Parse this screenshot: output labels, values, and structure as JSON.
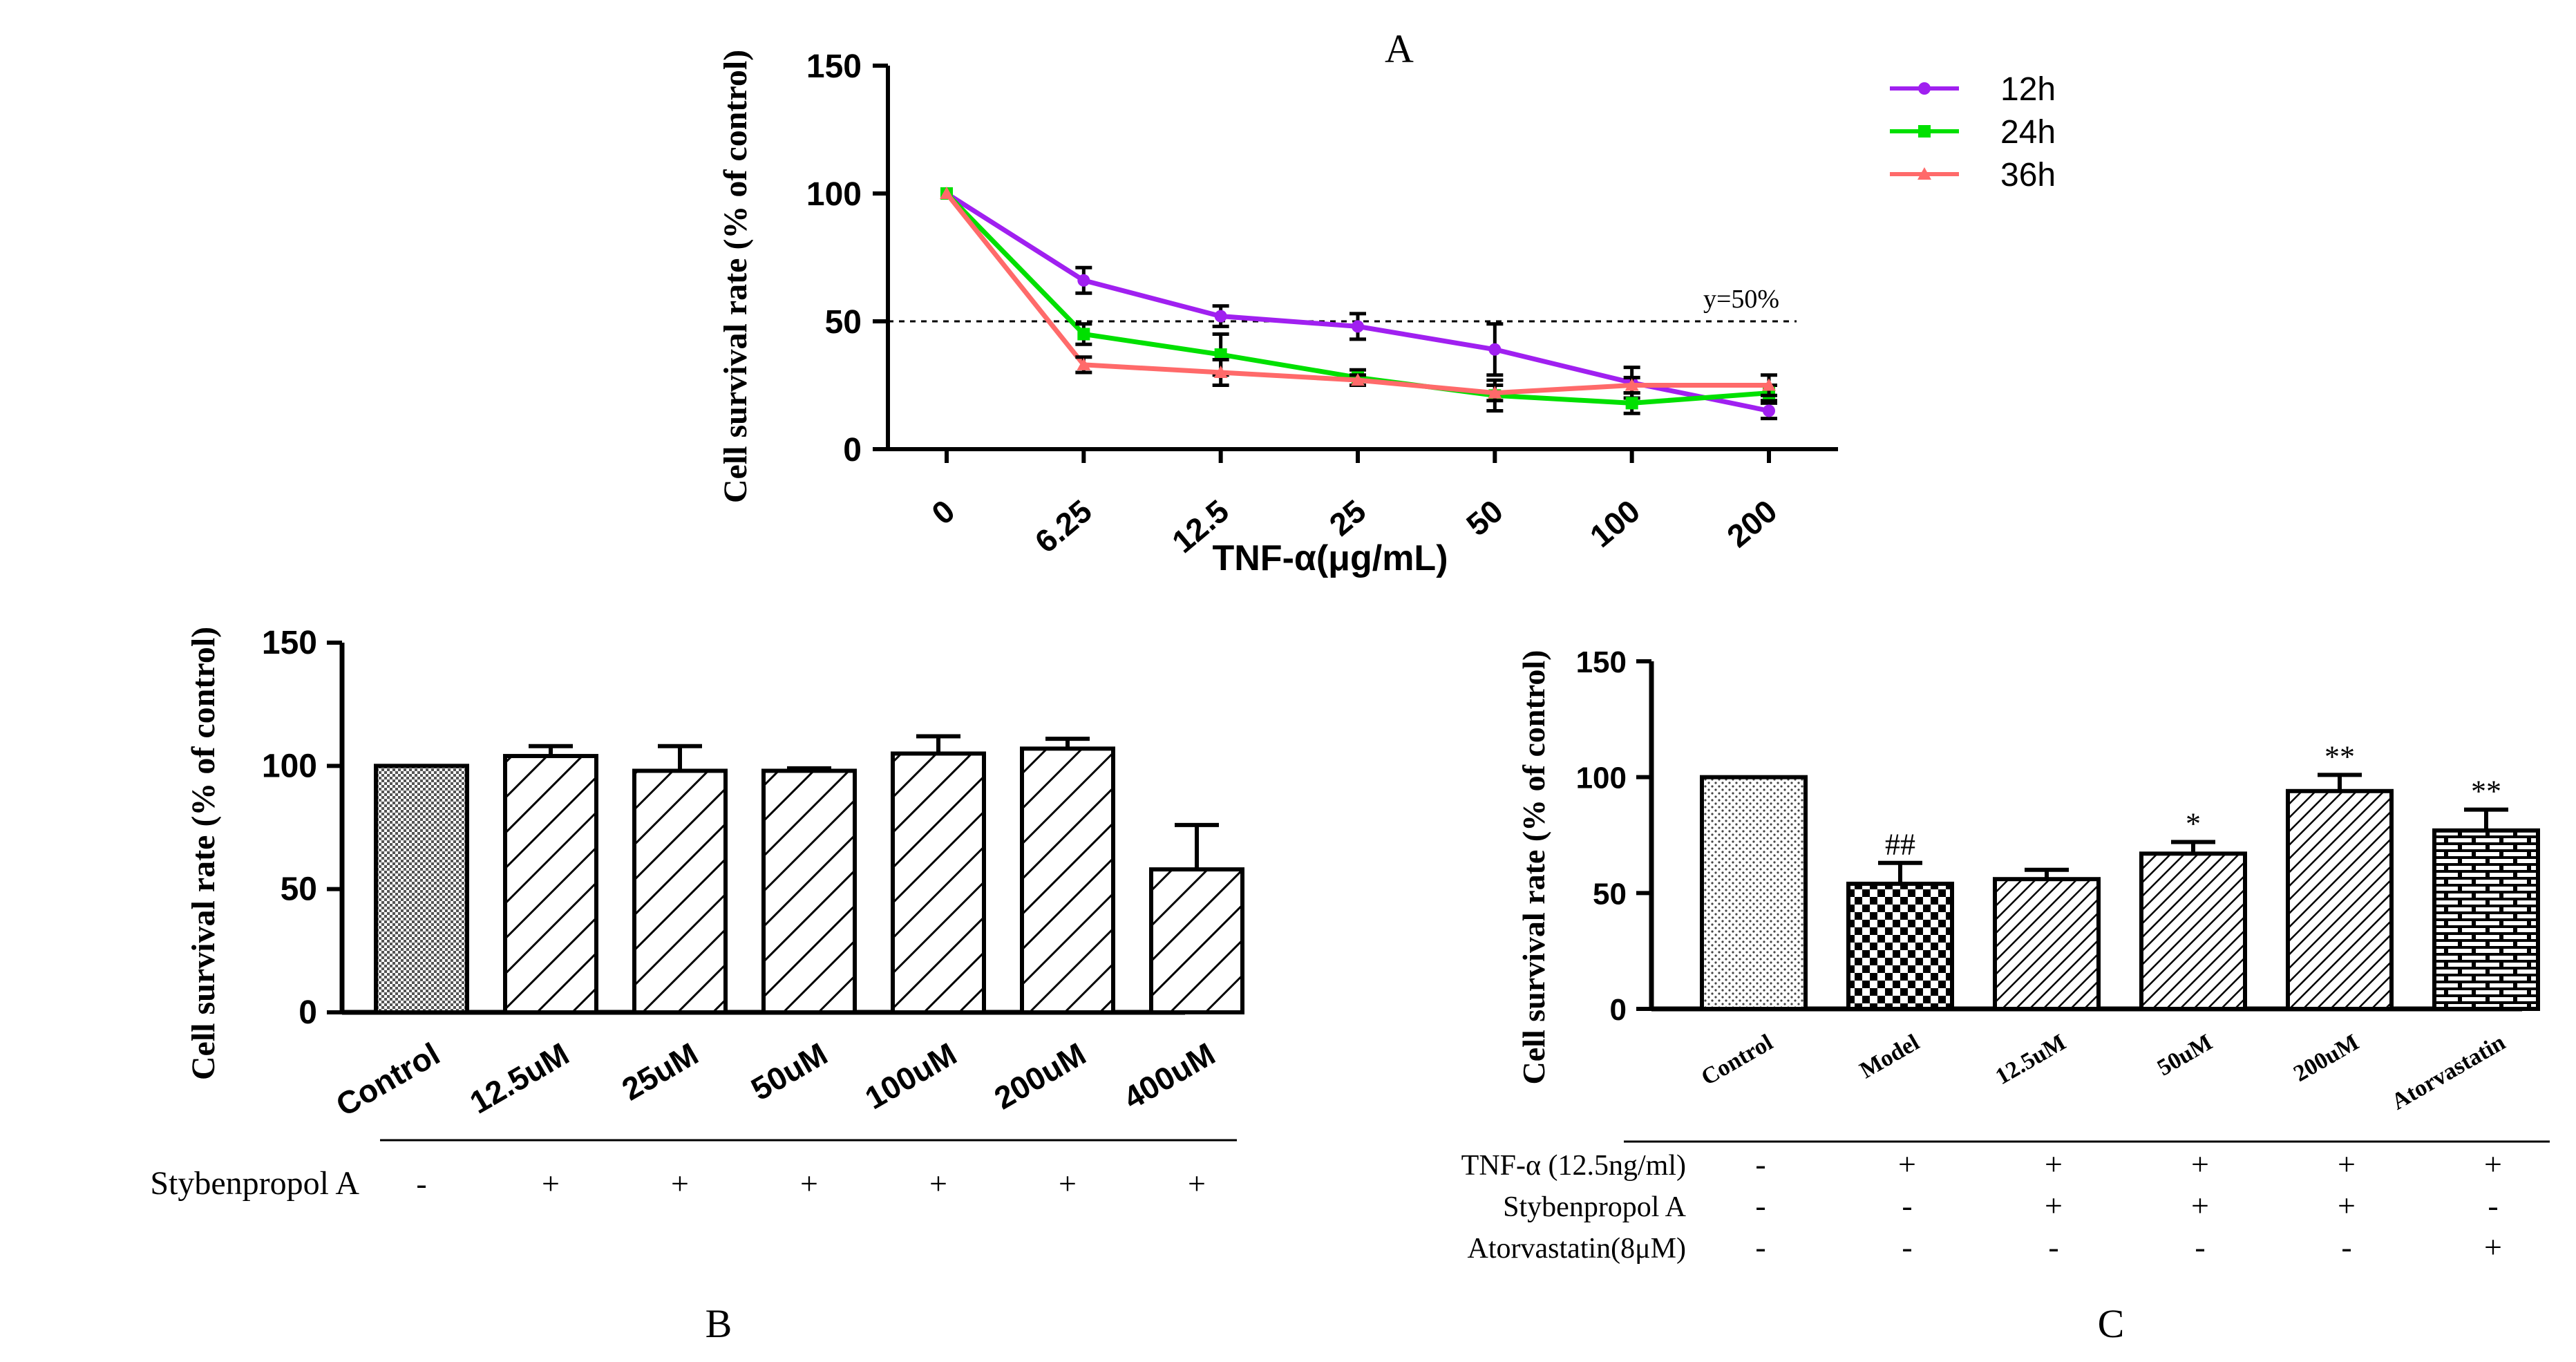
{
  "chart_data": [
    {
      "id": "A",
      "type": "line",
      "panel_label": "A",
      "title": "",
      "xlabel": "TNF-α(μg/mL)",
      "ylabel": "Cell survival rate  (% of control)",
      "categories": [
        "0",
        "6.25",
        "12.5",
        "25",
        "50",
        "100",
        "200"
      ],
      "ylim": [
        0,
        150
      ],
      "yticks": [
        "0",
        "50",
        "100",
        "150"
      ],
      "reference_line": {
        "y": 50,
        "label": "y=50%"
      },
      "legend": "top-right",
      "series": [
        {
          "name": "12h",
          "color": "#a020f0",
          "marker": "circle",
          "values": [
            100,
            66,
            52,
            48,
            39,
            26,
            15
          ],
          "errors": [
            0,
            5,
            4,
            5,
            10,
            6,
            3
          ]
        },
        {
          "name": "24h",
          "color": "#00e000",
          "marker": "square",
          "values": [
            100,
            45,
            37,
            28,
            21,
            18,
            22
          ],
          "errors": [
            0,
            4,
            8,
            3,
            6,
            4,
            3
          ]
        },
        {
          "name": "36h",
          "color": "#ff6a6a",
          "marker": "triangle",
          "values": [
            100,
            33,
            30,
            27,
            22,
            25,
            25
          ],
          "errors": [
            0,
            3,
            5,
            2,
            3,
            3,
            4
          ]
        }
      ]
    },
    {
      "id": "B",
      "type": "bar",
      "panel_label": "B",
      "title": "",
      "xlabel": "",
      "ylabel": "Cell survival rate  (% of control)",
      "categories": [
        "Control",
        "12.5uM",
        "25uM",
        "50uM",
        "100uM",
        "200uM",
        "400uM"
      ],
      "values": [
        100,
        104,
        98,
        98,
        105,
        107,
        58
      ],
      "errors": [
        0,
        4,
        10,
        1,
        7,
        4,
        18
      ],
      "ylim": [
        0,
        150
      ],
      "yticks": [
        "0",
        "50",
        "100",
        "150"
      ],
      "treatment_rows": [
        {
          "label": "Stybenpropol A",
          "signs": [
            "-",
            "+",
            "+",
            "+",
            "+",
            "+",
            "+"
          ]
        }
      ]
    },
    {
      "id": "C",
      "type": "bar",
      "panel_label": "C",
      "title": "",
      "xlabel": "",
      "ylabel": "Cell survival rate  (% of control)",
      "categories": [
        "Control",
        "Model",
        "12.5uM",
        "50uM",
        "200uM",
        "Atorvastatin"
      ],
      "values": [
        100,
        54,
        56,
        67,
        94,
        77
      ],
      "errors": [
        0,
        9,
        4,
        5,
        7,
        9
      ],
      "annotations": [
        "",
        "##",
        "",
        "*",
        "**",
        "**"
      ],
      "ylim": [
        0,
        150
      ],
      "yticks": [
        "0",
        "50",
        "100",
        "150"
      ],
      "treatment_rows": [
        {
          "label": "TNF-α (12.5ng/ml)",
          "signs": [
            "-",
            "+",
            "+",
            "+",
            "+",
            "+"
          ]
        },
        {
          "label": "Stybenpropol A",
          "signs": [
            "-",
            "-",
            "+",
            "+",
            "+",
            "-"
          ]
        },
        {
          "label": "Atorvastatin(8μM)",
          "signs": [
            "-",
            "-",
            "-",
            "-",
            "-",
            "+"
          ]
        }
      ]
    }
  ]
}
